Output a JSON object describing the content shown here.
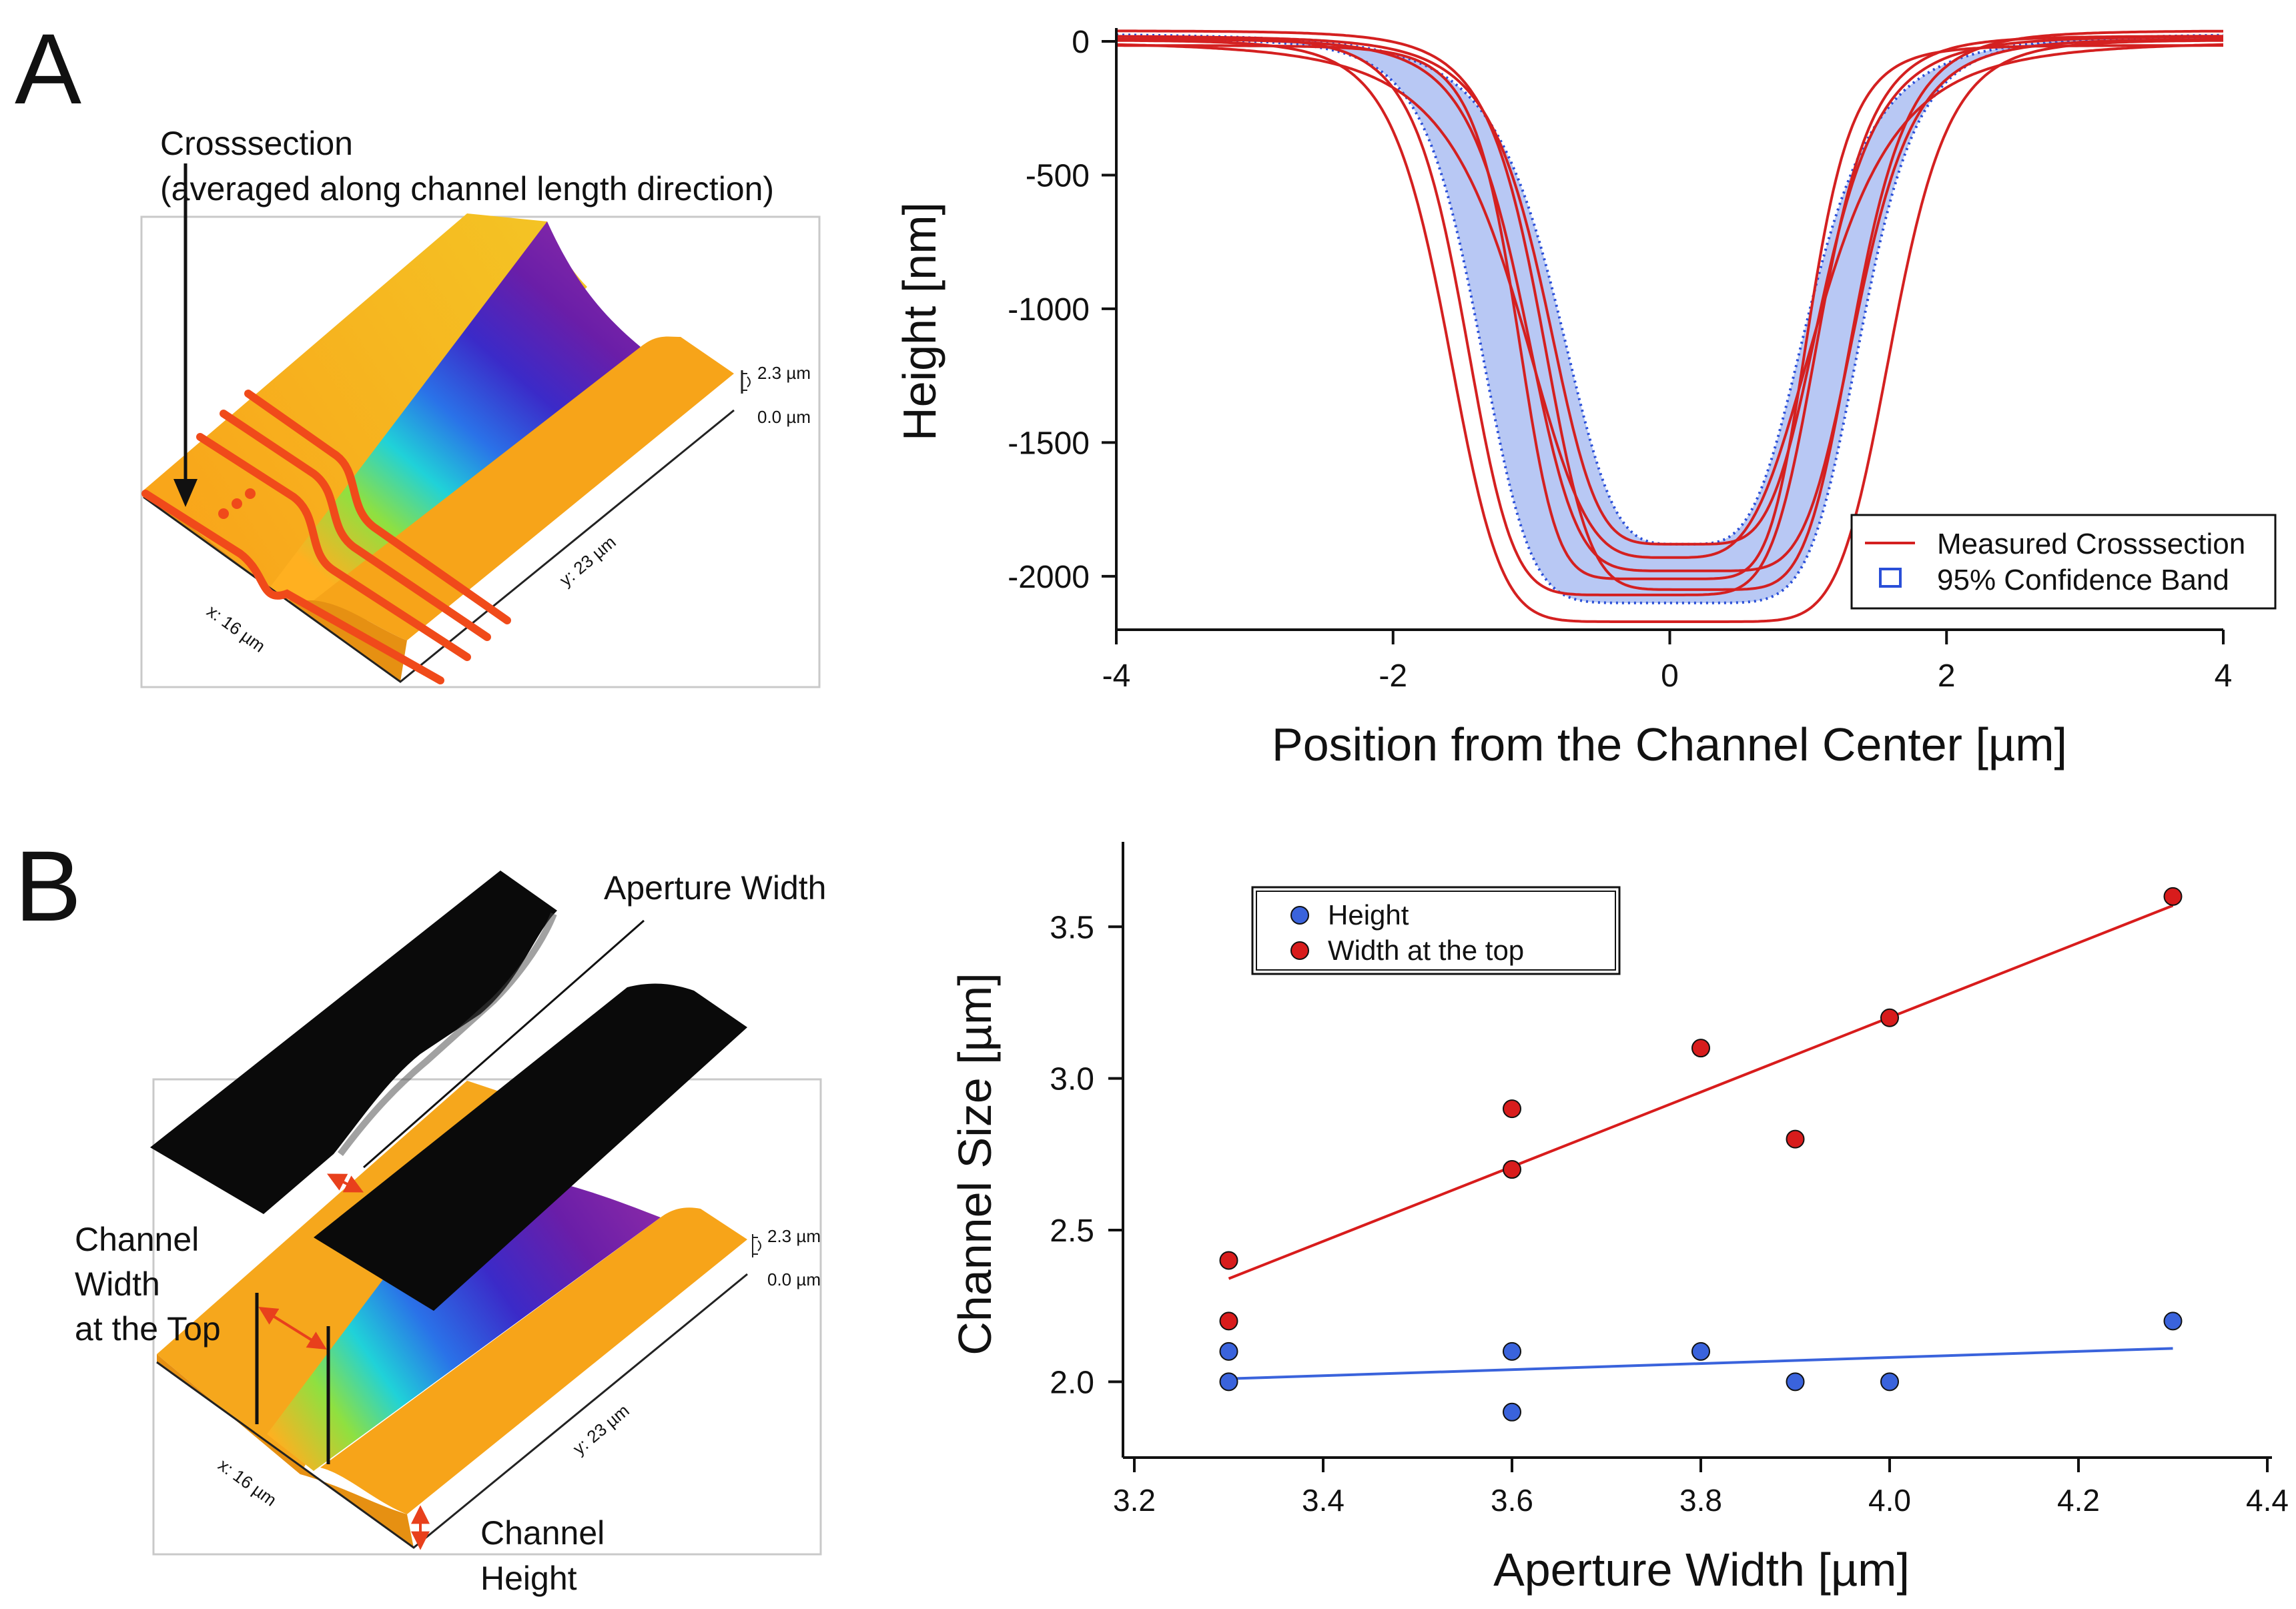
{
  "panels": {
    "a": {
      "letter": "A",
      "annotation_line1": "Crosssection",
      "annotation_line2": "(averaged along channel length direction)",
      "afm_scale_top": "2.3 µm",
      "afm_scale_bottom": "0.0 µm",
      "afm_x_label": "x: 16 µm",
      "afm_y_label": "y: 23 µm"
    },
    "b": {
      "letter": "B",
      "aperture_label": "Aperture Width",
      "channel_width_l1": "Channel",
      "channel_width_l2": "Width",
      "channel_width_l3": "at the Top",
      "channel_height_l1": "Channel",
      "channel_height_l2": "Height",
      "afm_scale_top": "2.3 µm",
      "afm_scale_bottom": "0.0 µm",
      "afm_x_label": "x: 16 µm",
      "afm_y_label": "y: 23 µm"
    }
  },
  "colors": {
    "measured": "#d42020",
    "band_fill": "#b8c8f4",
    "band_edge": "#2a4fd8",
    "height_series": "#3a63dc",
    "width_series": "#d81c1c",
    "afm_orange": "#f5a21a"
  },
  "chart_data": [
    {
      "type": "line",
      "title": "",
      "xlabel": "Position from the Channel Center [µm]",
      "ylabel": "Height [nm]",
      "xlim": [
        -4,
        4
      ],
      "ylim": [
        -2200,
        50
      ],
      "xticks": [
        "-4",
        "-2",
        "0",
        "2",
        "4"
      ],
      "yticks": [
        "0",
        "-500",
        "-1000",
        "-1500",
        "-2000"
      ],
      "legend": [
        "Measured Crosssection",
        "95% Confidence Band"
      ],
      "legend_position": "bottom-right",
      "profile_model": "baseline + (depth - baseline) / (1 + (|x - center| / half_width)^steepness)",
      "series": [
        {
          "name": "Measured Crosssection 1",
          "center": 0.0,
          "half_width": 1.62,
          "steepness": 8,
          "depth": -2170,
          "baseline": 5
        },
        {
          "name": "Measured Crosssection 2",
          "center": -0.05,
          "half_width": 1.07,
          "steepness": 7,
          "depth": -2010,
          "baseline": -15
        },
        {
          "name": "Measured Crosssection 3",
          "center": 0.15,
          "half_width": 1.22,
          "steepness": 6,
          "depth": -1980,
          "baseline": 10
        },
        {
          "name": "Measured Crosssection 4",
          "center": 0.0,
          "half_width": 1.12,
          "steepness": 4,
          "depth": -1930,
          "baseline": 0
        },
        {
          "name": "Measured Crosssection 5",
          "center": 0.1,
          "half_width": 1.02,
          "steepness": 5,
          "depth": -1880,
          "baseline": 20
        },
        {
          "name": "Measured Crosssection 6",
          "center": 0.2,
          "half_width": 1.15,
          "steepness": 6,
          "depth": -2050,
          "baseline": 40
        },
        {
          "name": "Measured Crosssection 7",
          "center": -0.2,
          "half_width": 1.3,
          "steepness": 7,
          "depth": -2070,
          "baseline": 20
        }
      ],
      "band": {
        "name": "95% Confidence Band",
        "upper": {
          "center": 0.1,
          "half_width": 0.95,
          "steepness": 4,
          "depth": -1880,
          "baseline": 30
        },
        "lower": {
          "center": 0.0,
          "half_width": 1.4,
          "steepness": 7,
          "depth": -2100,
          "baseline": 10
        }
      }
    },
    {
      "type": "scatter",
      "title": "",
      "xlabel": "Aperture Width [µm]",
      "ylabel": "Channel Size [µm]",
      "xlim": [
        3.2,
        4.4
      ],
      "ylim": [
        1.75,
        3.78
      ],
      "xticks": [
        "3.2",
        "3.4",
        "3.6",
        "3.8",
        "4.0",
        "4.2",
        "4.4"
      ],
      "yticks": [
        "2.0",
        "2.5",
        "3.0",
        "3.5"
      ],
      "legend_position": "top-left",
      "series": [
        {
          "name": "Height",
          "x": [
            3.3,
            3.3,
            3.6,
            3.6,
            3.8,
            3.9,
            4.0,
            4.3
          ],
          "y": [
            2.1,
            2.0,
            2.1,
            1.9,
            2.1,
            2.0,
            2.0,
            2.2
          ],
          "fit": {
            "x": [
              3.3,
              4.3
            ],
            "y": [
              2.01,
              2.11
            ]
          }
        },
        {
          "name": "Width at the top",
          "x": [
            3.3,
            3.3,
            3.6,
            3.6,
            3.8,
            3.9,
            4.0,
            4.3
          ],
          "y": [
            2.4,
            2.2,
            2.9,
            2.7,
            3.1,
            2.8,
            3.2,
            3.6
          ],
          "fit": {
            "x": [
              3.3,
              4.3
            ],
            "y": [
              2.34,
              3.57
            ]
          }
        }
      ]
    }
  ]
}
